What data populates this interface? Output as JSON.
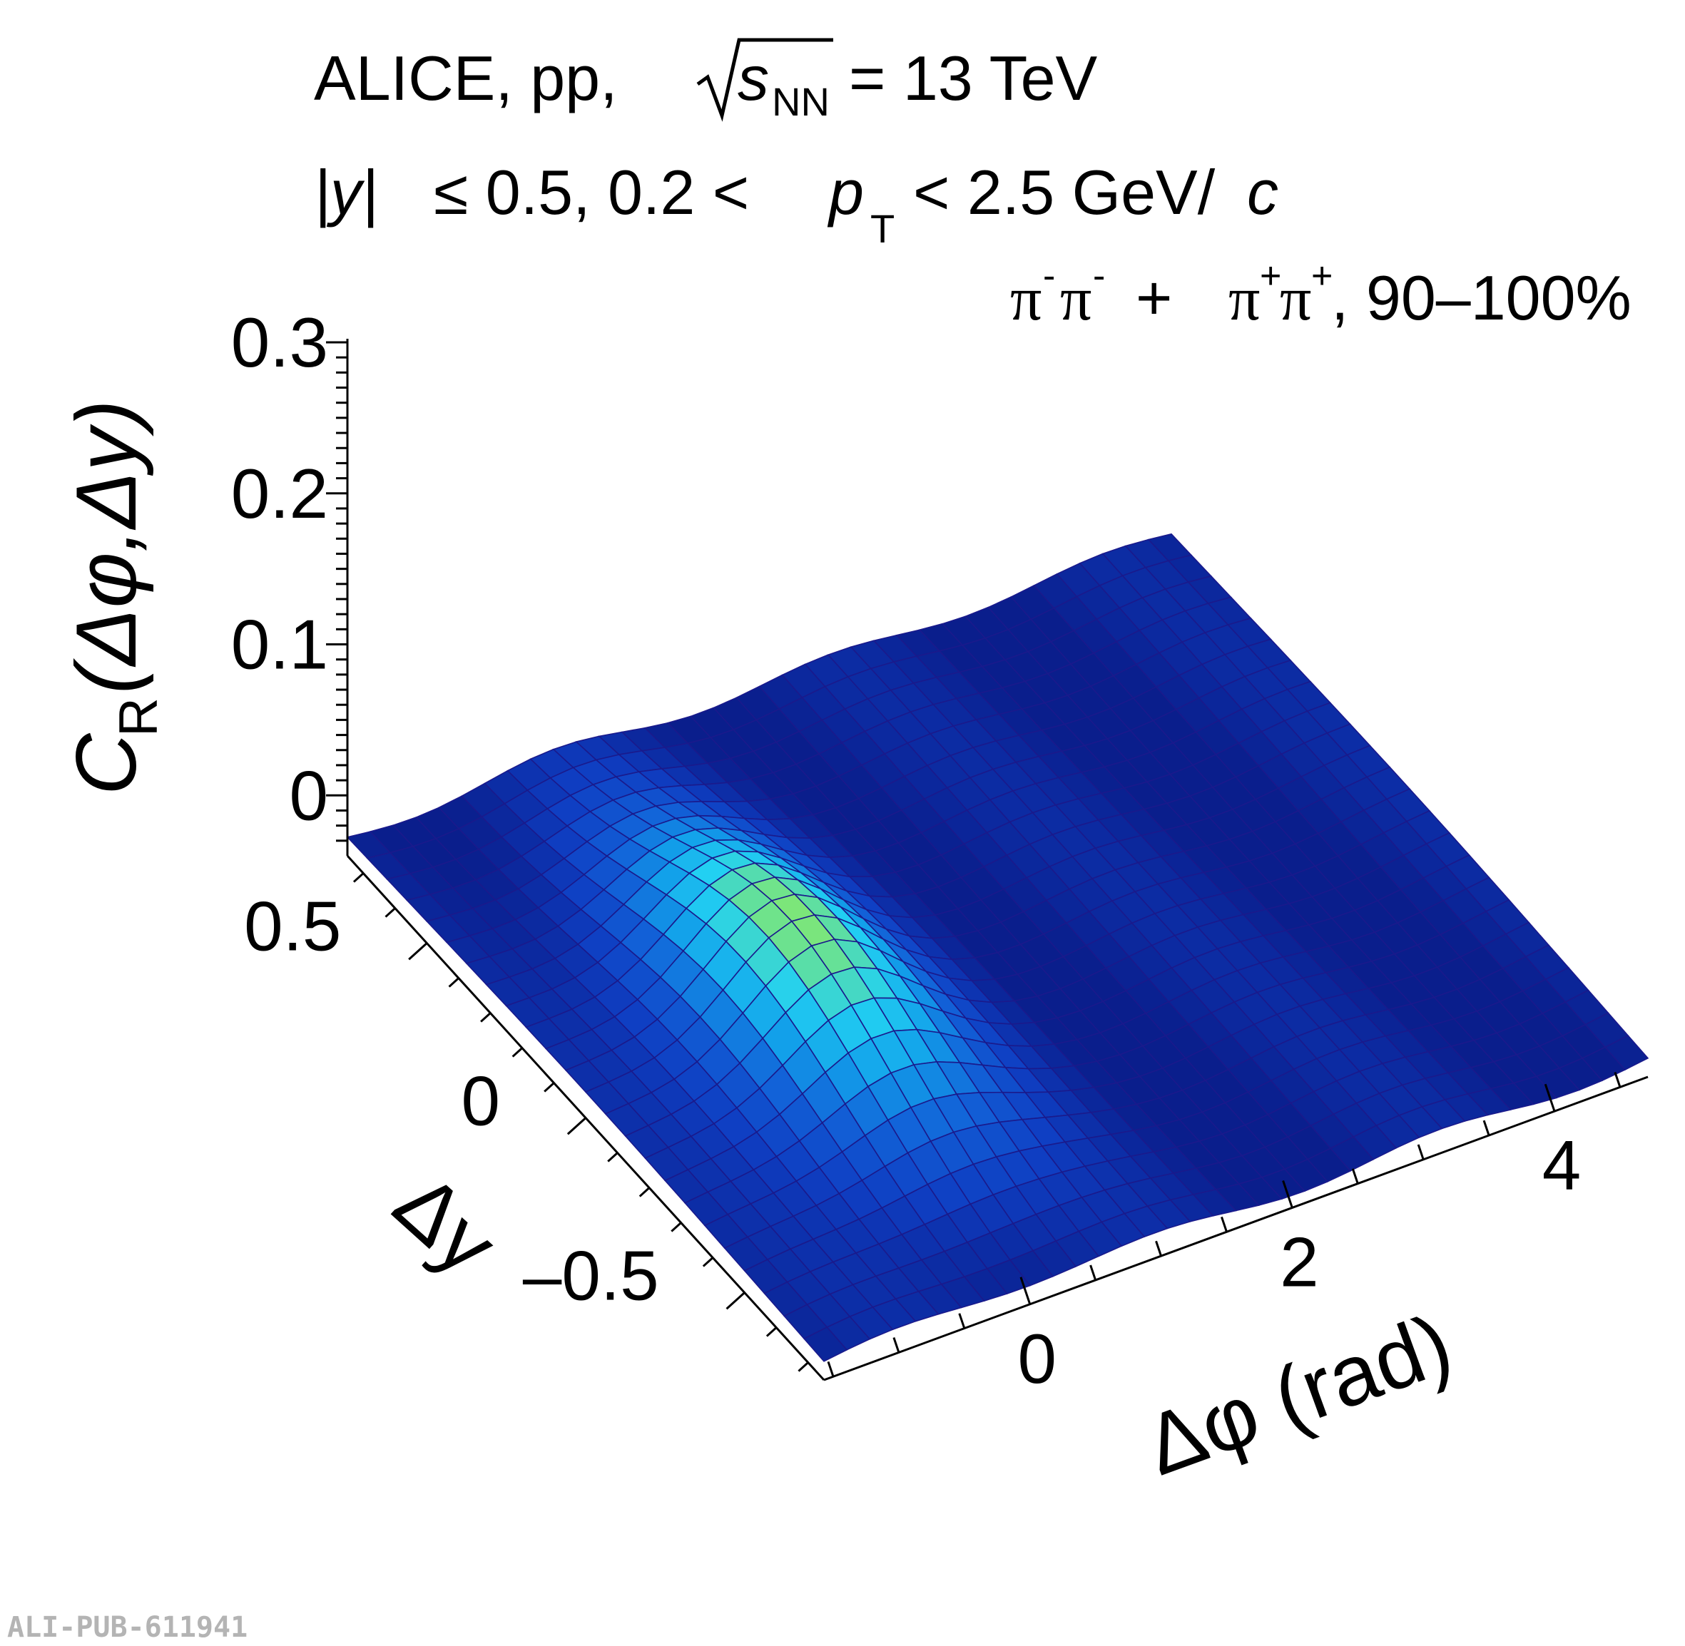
{
  "header": {
    "line1_experiment": "ALICE, pp,",
    "line1_sqrt_var": "s",
    "line1_sqrt_sub": "NN",
    "line1_energy": "= 13 TeV",
    "line2_abs_y": "|y|",
    "line2_mid": "≤ 0.5, 0.2 <",
    "line2_pt": "p",
    "line2_pt_sub": "T",
    "line2_range": "< 2.5 GeV/",
    "line2_c": "c",
    "line3_pi1": "π",
    "line3_sup1": "-",
    "line3_pi2": "π",
    "line3_sup2": "-",
    "line3_plus": "+",
    "line3_pi3": "π",
    "line3_sup3": "+",
    "line3_pi4": "π",
    "line3_sup4": "+",
    "line3_cent": ", 90–100%"
  },
  "credit": "ALI-PUB-611941",
  "chart_data": {
    "type": "surface",
    "zlabel": {
      "main": "C",
      "sub": "R",
      "args": "(Δφ,Δy)"
    },
    "ylabel": "Δy",
    "xlabel": "Δφ (rad)",
    "zlim": [
      -0.04,
      0.31
    ],
    "z_ticks": [
      0,
      0.1,
      0.2,
      0.3
    ],
    "z_tick_labels": [
      "0",
      "0.1",
      "0.2",
      "0.3"
    ],
    "ylim": [
      -0.75,
      0.75
    ],
    "y_ticks": [
      -0.5,
      0,
      0.5
    ],
    "y_tick_labels": [
      "–0.5",
      "0",
      "0.5"
    ],
    "xlim": [
      -1.5708,
      4.7124
    ],
    "x_ticks": [
      0,
      2,
      4
    ],
    "x_tick_labels": [
      "0",
      "2",
      "4"
    ],
    "peak": {
      "dphi": 0,
      "dy": 0,
      "value": 0.04
    },
    "colormap": [
      "#0a1e8c",
      "#0f3ec2",
      "#1262d8",
      "#12a0ea",
      "#22d0f2",
      "#7ce67a"
    ]
  }
}
